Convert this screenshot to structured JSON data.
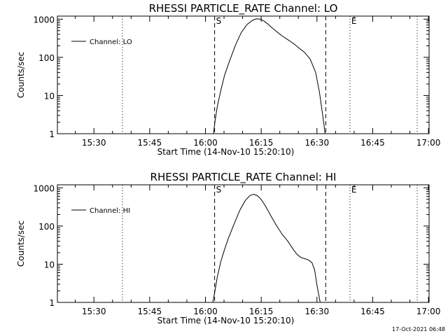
{
  "footer": {
    "timestamp": "17-Oct-2021 06:48"
  },
  "chart_data": [
    {
      "type": "line",
      "title": "RHESSI PARTICLE_RATE Channel: LO",
      "xlabel": "Start Time (14-Nov-10 15:20:10)",
      "ylabel": "Counts/sec",
      "x_unit": "minutes after 15:20:10",
      "x_range": [
        0,
        100
      ],
      "y_scale": "log",
      "y_range": [
        1,
        1200
      ],
      "x_ticks": [
        {
          "value": 9.83,
          "label": "15:30"
        },
        {
          "value": 24.83,
          "label": "15:45"
        },
        {
          "value": 39.83,
          "label": "16:00"
        },
        {
          "value": 54.83,
          "label": "16:15"
        },
        {
          "value": 69.83,
          "label": "16:30"
        },
        {
          "value": 84.83,
          "label": "16:45"
        },
        {
          "value": 99.83,
          "label": "17:00"
        }
      ],
      "y_ticks": [
        {
          "value": 1,
          "label": "1"
        },
        {
          "value": 10,
          "label": "10"
        },
        {
          "value": 100,
          "label": "100"
        },
        {
          "value": 1000,
          "label": "1000"
        }
      ],
      "legend": {
        "placement": "top-left",
        "entries": [
          "Channel: LO"
        ]
      },
      "markers": [
        {
          "x": 17.5,
          "style": "dotted",
          "label": ""
        },
        {
          "x": 42.3,
          "style": "dashed",
          "label": "S"
        },
        {
          "x": 72.2,
          "style": "dashed",
          "label": ""
        },
        {
          "x": 78.7,
          "style": "dotted",
          "label": "E"
        },
        {
          "x": 96.8,
          "style": "dotted",
          "label": ""
        }
      ],
      "series": [
        {
          "name": "Channel: LO",
          "x": [
            42.0,
            42.3,
            43.0,
            44.0,
            45.0,
            46.5,
            48.0,
            49.5,
            51.0,
            52.5,
            53.5,
            54.5,
            55.5,
            56.5,
            57.5,
            59.0,
            60.5,
            62.0,
            63.5,
            65.0,
            66.5,
            68.0,
            69.5,
            70.5,
            71.2,
            71.7,
            72.0
          ],
          "values": [
            1,
            1.8,
            5,
            14,
            35,
            90,
            220,
            450,
            720,
            930,
            1020,
            1000,
            900,
            760,
            620,
            470,
            360,
            290,
            230,
            175,
            135,
            90,
            40,
            12,
            4,
            1.8,
            1
          ]
        }
      ]
    },
    {
      "type": "line",
      "title": "RHESSI PARTICLE_RATE Channel: HI",
      "xlabel": "Start Time (14-Nov-10 15:20:10)",
      "ylabel": "Counts/sec",
      "x_unit": "minutes after 15:20:10",
      "x_range": [
        0,
        100
      ],
      "y_scale": "log",
      "y_range": [
        1,
        1200
      ],
      "x_ticks": [
        {
          "value": 9.83,
          "label": "15:30"
        },
        {
          "value": 24.83,
          "label": "15:45"
        },
        {
          "value": 39.83,
          "label": "16:00"
        },
        {
          "value": 54.83,
          "label": "16:15"
        },
        {
          "value": 69.83,
          "label": "16:30"
        },
        {
          "value": 84.83,
          "label": "16:45"
        },
        {
          "value": 99.83,
          "label": "17:00"
        }
      ],
      "y_ticks": [
        {
          "value": 1,
          "label": "1"
        },
        {
          "value": 10,
          "label": "10"
        },
        {
          "value": 100,
          "label": "100"
        },
        {
          "value": 1000,
          "label": "1000"
        }
      ],
      "legend": {
        "placement": "top-left",
        "entries": [
          "Channel: HI"
        ]
      },
      "markers": [
        {
          "x": 17.5,
          "style": "dotted",
          "label": ""
        },
        {
          "x": 42.3,
          "style": "dashed",
          "label": "S"
        },
        {
          "x": 72.2,
          "style": "dashed",
          "label": ""
        },
        {
          "x": 78.7,
          "style": "dotted",
          "label": "E"
        },
        {
          "x": 96.8,
          "style": "dotted",
          "label": ""
        }
      ],
      "series": [
        {
          "name": "Channel: HI",
          "x": [
            41.8,
            42.3,
            43.0,
            44.0,
            45.0,
            46.0,
            47.5,
            49.0,
            50.5,
            51.8,
            52.8,
            53.8,
            54.8,
            56.0,
            57.5,
            59.0,
            60.5,
            62.0,
            63.5,
            64.5,
            65.5,
            66.5,
            67.5,
            68.5,
            69.2,
            69.8,
            70.3,
            70.7
          ],
          "values": [
            1,
            1.8,
            4.5,
            12,
            25,
            48,
            110,
            250,
            460,
            630,
            680,
            620,
            500,
            330,
            180,
            100,
            60,
            40,
            24,
            18,
            15,
            14,
            13,
            11,
            7,
            3,
            1.6,
            1
          ]
        }
      ]
    }
  ]
}
